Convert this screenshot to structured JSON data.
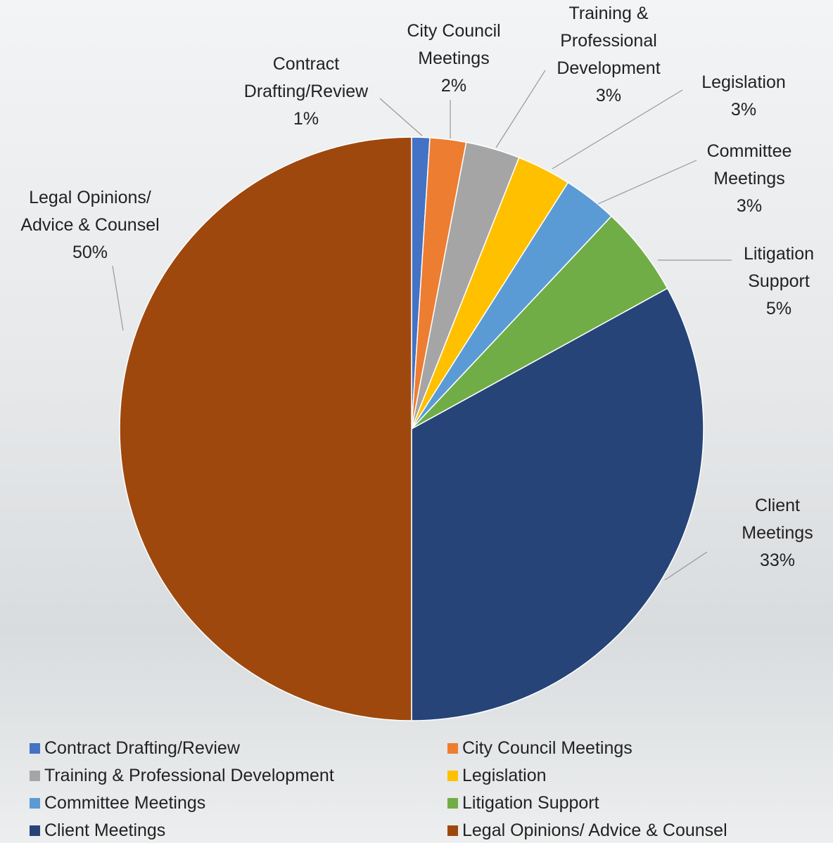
{
  "chart_data": {
    "type": "pie",
    "categories": [
      "Contract Drafting/Review",
      "City Council Meetings",
      "Training & Professional Development",
      "Legislation",
      "Committee Meetings",
      "Litigation Support",
      "Client Meetings",
      "Legal Opinions/ Advice & Counsel"
    ],
    "values": [
      1,
      2,
      3,
      3,
      3,
      5,
      33,
      50
    ],
    "value_labels": [
      "1%",
      "2%",
      "3%",
      "3%",
      "3%",
      "5%",
      "33%",
      "50%"
    ],
    "colors": [
      "#4472c4",
      "#ed7d31",
      "#a5a5a5",
      "#ffc000",
      "#5b9bd5",
      "#70ad47",
      "#264478",
      "#9e480e"
    ],
    "legend": "bottom"
  }
}
